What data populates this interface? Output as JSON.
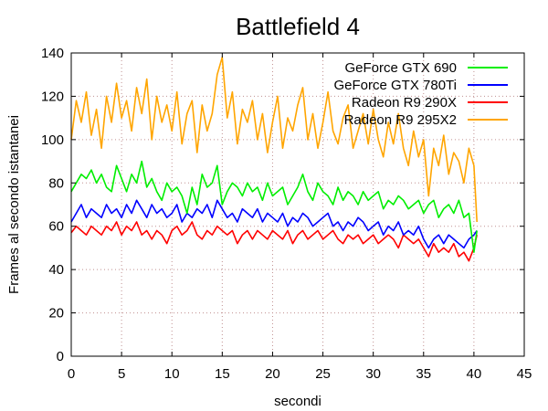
{
  "chart_data": {
    "type": "line",
    "title": "Battlefield 4",
    "xlabel": "secondi",
    "ylabel": "Frames al secondo istantanei",
    "xlim": [
      0,
      45
    ],
    "ylim": [
      0,
      140
    ],
    "xticks": [
      "0",
      "5",
      "10",
      "15",
      "20",
      "25",
      "30",
      "35",
      "40",
      "45"
    ],
    "yticks": [
      "0",
      "20",
      "40",
      "60",
      "80",
      "100",
      "120",
      "140"
    ],
    "grid": true,
    "legend_position": "top-right",
    "series": [
      {
        "name": "GeForce GTX 690",
        "color": "#00ee00",
        "x": [
          0,
          0.5,
          1,
          1.5,
          2,
          2.5,
          3,
          3.5,
          4,
          4.5,
          5,
          5.5,
          6,
          6.5,
          7,
          7.5,
          8,
          8.5,
          9,
          9.5,
          10,
          10.5,
          11,
          11.5,
          12,
          12.5,
          13,
          13.5,
          14,
          14.5,
          15,
          15.5,
          16,
          16.5,
          17,
          17.5,
          18,
          18.5,
          19,
          19.5,
          20,
          20.5,
          21,
          21.5,
          22,
          22.5,
          23,
          23.5,
          24,
          24.5,
          25,
          25.5,
          26,
          26.5,
          27,
          27.5,
          28,
          28.5,
          29,
          29.5,
          30,
          30.5,
          31,
          31.5,
          32,
          32.5,
          33,
          33.5,
          34,
          34.5,
          35,
          35.5,
          36,
          36.5,
          37,
          37.5,
          38,
          38.5,
          39,
          39.5,
          40,
          40.3
        ],
        "y": [
          76,
          80,
          84,
          82,
          86,
          80,
          84,
          78,
          76,
          88,
          82,
          76,
          84,
          80,
          90,
          78,
          82,
          76,
          72,
          80,
          76,
          78,
          74,
          66,
          78,
          70,
          84,
          78,
          80,
          88,
          70,
          76,
          80,
          78,
          74,
          80,
          76,
          78,
          72,
          80,
          74,
          76,
          78,
          70,
          74,
          78,
          84,
          76,
          72,
          80,
          76,
          74,
          70,
          78,
          72,
          76,
          74,
          70,
          76,
          72,
          74,
          76,
          68,
          72,
          70,
          74,
          72,
          68,
          70,
          72,
          66,
          70,
          72,
          64,
          68,
          70,
          66,
          72,
          64,
          66,
          48,
          58
        ]
      },
      {
        "name": "GeForce GTX 780Ti",
        "color": "#0000ff",
        "x": [
          0,
          0.5,
          1,
          1.5,
          2,
          2.5,
          3,
          3.5,
          4,
          4.5,
          5,
          5.5,
          6,
          6.5,
          7,
          7.5,
          8,
          8.5,
          9,
          9.5,
          10,
          10.5,
          11,
          11.5,
          12,
          12.5,
          13,
          13.5,
          14,
          14.5,
          15,
          15.5,
          16,
          16.5,
          17,
          17.5,
          18,
          18.5,
          19,
          19.5,
          20,
          20.5,
          21,
          21.5,
          22,
          22.5,
          23,
          23.5,
          24,
          24.5,
          25,
          25.5,
          26,
          26.5,
          27,
          27.5,
          28,
          28.5,
          29,
          29.5,
          30,
          30.5,
          31,
          31.5,
          32,
          32.5,
          33,
          33.5,
          34,
          34.5,
          35,
          35.5,
          36,
          36.5,
          37,
          37.5,
          38,
          38.5,
          39,
          39.5,
          40,
          40.3
        ],
        "y": [
          62,
          66,
          70,
          64,
          68,
          66,
          64,
          70,
          66,
          68,
          64,
          70,
          66,
          72,
          68,
          64,
          70,
          66,
          68,
          64,
          66,
          70,
          62,
          66,
          64,
          68,
          66,
          70,
          64,
          72,
          68,
          64,
          66,
          62,
          68,
          66,
          64,
          68,
          62,
          66,
          64,
          62,
          66,
          60,
          64,
          62,
          66,
          64,
          60,
          62,
          64,
          66,
          60,
          62,
          58,
          62,
          60,
          64,
          62,
          58,
          60,
          62,
          56,
          60,
          58,
          62,
          56,
          58,
          56,
          60,
          54,
          50,
          54,
          56,
          52,
          56,
          54,
          52,
          50,
          54,
          56,
          58
        ]
      },
      {
        "name": "Radeon R9 290X",
        "color": "#ff0000",
        "x": [
          0,
          0.5,
          1,
          1.5,
          2,
          2.5,
          3,
          3.5,
          4,
          4.5,
          5,
          5.5,
          6,
          6.5,
          7,
          7.5,
          8,
          8.5,
          9,
          9.5,
          10,
          10.5,
          11,
          11.5,
          12,
          12.5,
          13,
          13.5,
          14,
          14.5,
          15,
          15.5,
          16,
          16.5,
          17,
          17.5,
          18,
          18.5,
          19,
          19.5,
          20,
          20.5,
          21,
          21.5,
          22,
          22.5,
          23,
          23.5,
          24,
          24.5,
          25,
          25.5,
          26,
          26.5,
          27,
          27.5,
          28,
          28.5,
          29,
          29.5,
          30,
          30.5,
          31,
          31.5,
          32,
          32.5,
          33,
          33.5,
          34,
          34.5,
          35,
          35.5,
          36,
          36.5,
          37,
          37.5,
          38,
          38.5,
          39,
          39.5,
          40,
          40.3
        ],
        "y": [
          57,
          60,
          58,
          56,
          60,
          58,
          56,
          60,
          58,
          62,
          56,
          60,
          58,
          62,
          56,
          58,
          54,
          58,
          56,
          52,
          58,
          60,
          56,
          58,
          62,
          56,
          54,
          58,
          56,
          60,
          58,
          56,
          58,
          52,
          56,
          58,
          54,
          58,
          56,
          54,
          58,
          56,
          54,
          58,
          52,
          56,
          58,
          54,
          56,
          58,
          54,
          56,
          58,
          54,
          52,
          56,
          54,
          56,
          52,
          54,
          56,
          52,
          54,
          56,
          54,
          50,
          56,
          54,
          52,
          54,
          50,
          46,
          52,
          48,
          50,
          48,
          52,
          46,
          48,
          44,
          50,
          56
        ]
      },
      {
        "name": "Radeon R9 295X2",
        "color": "#ffa500",
        "x": [
          0,
          0.5,
          1,
          1.5,
          2,
          2.5,
          3,
          3.5,
          4,
          4.5,
          5,
          5.5,
          6,
          6.5,
          7,
          7.5,
          8,
          8.5,
          9,
          9.5,
          10,
          10.5,
          11,
          11.5,
          12,
          12.5,
          13,
          13.5,
          14,
          14.5,
          15,
          15.5,
          16,
          16.5,
          17,
          17.5,
          18,
          18.5,
          19,
          19.5,
          20,
          20.5,
          21,
          21.5,
          22,
          22.5,
          23,
          23.5,
          24,
          24.5,
          25,
          25.5,
          26,
          26.5,
          27,
          27.5,
          28,
          28.5,
          29,
          29.5,
          30,
          30.5,
          31,
          31.5,
          32,
          32.5,
          33,
          33.5,
          34,
          34.5,
          35,
          35.5,
          36,
          36.5,
          37,
          37.5,
          38,
          38.5,
          39,
          39.5,
          40,
          40.3
        ],
        "y": [
          100,
          118,
          108,
          122,
          102,
          114,
          96,
          120,
          108,
          126,
          110,
          118,
          104,
          124,
          112,
          128,
          100,
          120,
          108,
          116,
          104,
          122,
          98,
          112,
          118,
          94,
          116,
          104,
          112,
          130,
          138,
          110,
          122,
          98,
          114,
          108,
          118,
          100,
          112,
          94,
          108,
          120,
          96,
          110,
          104,
          116,
          124,
          100,
          112,
          96,
          108,
          122,
          104,
          98,
          110,
          116,
          96,
          104,
          112,
          98,
          114,
          100,
          92,
          108,
          98,
          112,
          96,
          88,
          104,
          92,
          100,
          74,
          96,
          88,
          102,
          84,
          94,
          90,
          80,
          96,
          88,
          62
        ]
      }
    ]
  }
}
